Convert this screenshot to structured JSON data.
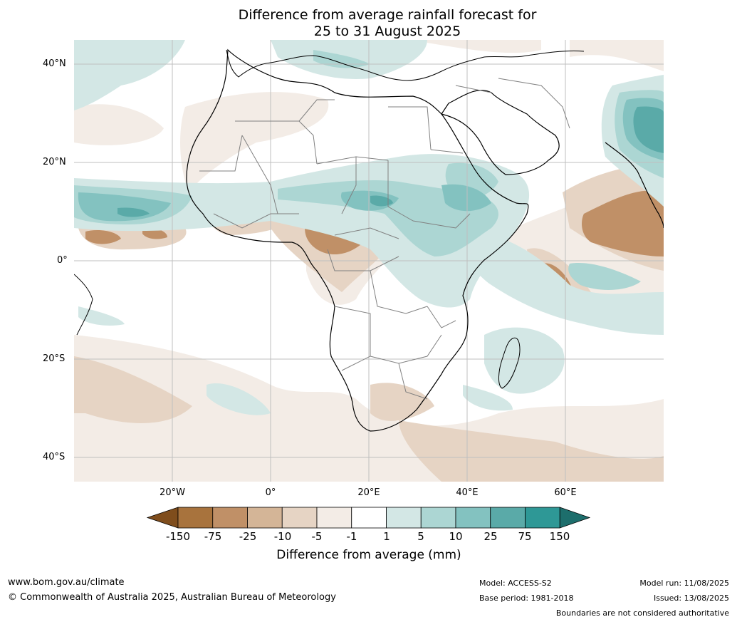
{
  "title": {
    "line1": "Difference from average rainfall forecast for",
    "line2": "25 to 31 August 2025"
  },
  "axes": {
    "lat_labels": [
      "40°N",
      "20°N",
      "0°",
      "20°S",
      "40°S"
    ],
    "lon_labels": [
      "20°W",
      "0°",
      "20°E",
      "40°E",
      "60°E"
    ]
  },
  "colorbar": {
    "title": "Difference from average (mm)",
    "tick_labels": [
      "-150",
      "-75",
      "-25",
      "-10",
      "-5",
      "-1",
      "1",
      "5",
      "10",
      "25",
      "75",
      "150"
    ],
    "colors": [
      "#7f4d1c",
      "#a8733d",
      "#c09067",
      "#d4b597",
      "#e6d4c4",
      "#f3ece6",
      "#ffffff",
      "#d3e7e5",
      "#acd6d3",
      "#83c2c0",
      "#5aaaa8",
      "#2e9896",
      "#1d6e6c"
    ]
  },
  "footer": {
    "website": "www.bom.gov.au/climate",
    "copyright": "© Commonwealth of Australia 2025, Australian Bureau of Meteorology",
    "model": "Model: ACCESS-S2",
    "base_period": "Base period: 1981-2018",
    "model_run": "Model run: 11/08/2025",
    "issued": "Issued: 13/08/2025",
    "boundaries_note": "Boundaries are not considered authoritative"
  }
}
